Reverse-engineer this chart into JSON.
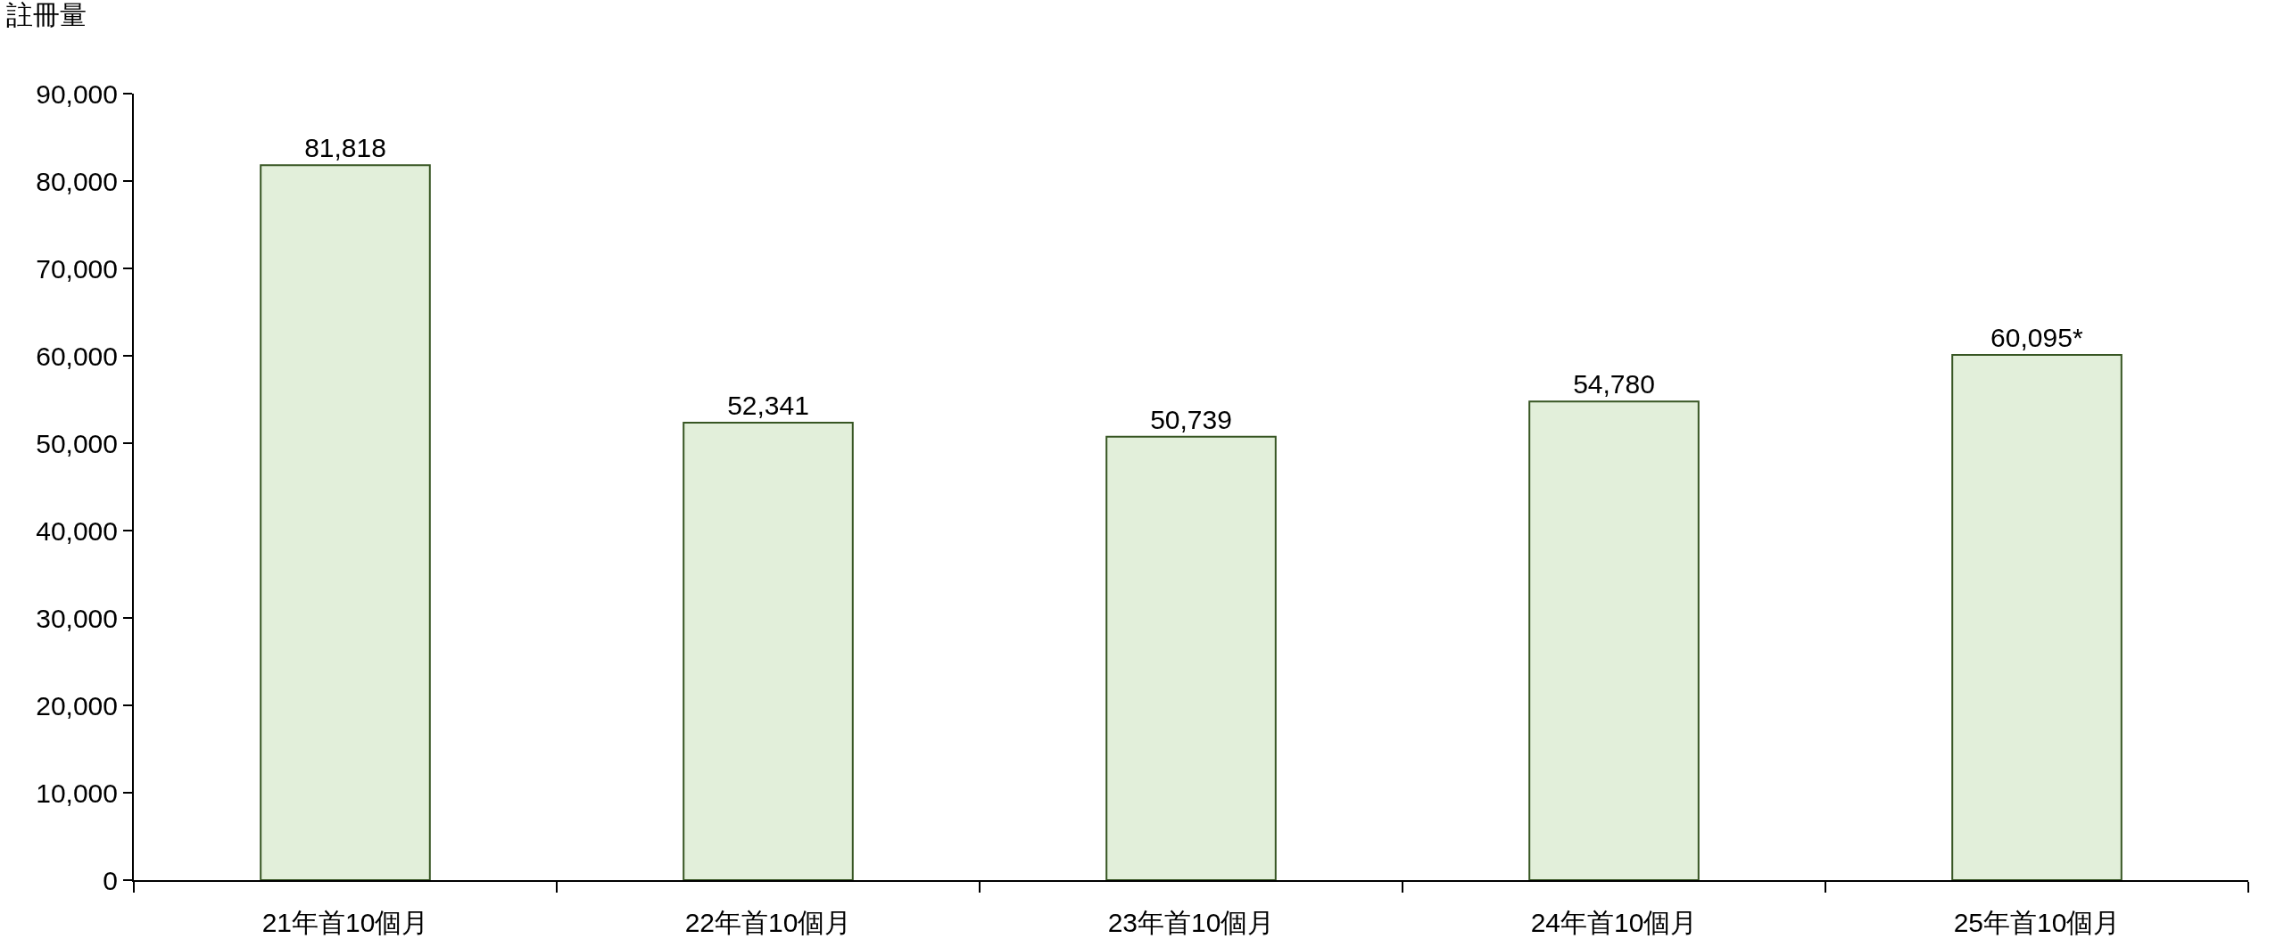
{
  "chart_data": {
    "type": "bar",
    "ylabel": "註冊量",
    "categories": [
      "21年首10個月",
      "22年首10個月",
      "23年首10個月",
      "24年首10個月",
      "25年首10個月"
    ],
    "values": [
      81818,
      52341,
      50739,
      54780,
      60095
    ],
    "value_labels": [
      "81,818",
      "52,341",
      "50,739",
      "54,780",
      "60,095*"
    ],
    "color": "#e2efda",
    "ylim": [
      0,
      90000
    ],
    "yticks": [
      {
        "value": 0,
        "label": "0"
      },
      {
        "value": 10000,
        "label": "10,000"
      },
      {
        "value": 20000,
        "label": "20,000"
      },
      {
        "value": 30000,
        "label": "30,000"
      },
      {
        "value": 40000,
        "label": "40,000"
      },
      {
        "value": 50000,
        "label": "50,000"
      },
      {
        "value": 60000,
        "label": "60,000"
      },
      {
        "value": 70000,
        "label": "70,000"
      },
      {
        "value": 80000,
        "label": "80,000"
      },
      {
        "value": 90000,
        "label": "90,000"
      }
    ],
    "grid": false
  }
}
